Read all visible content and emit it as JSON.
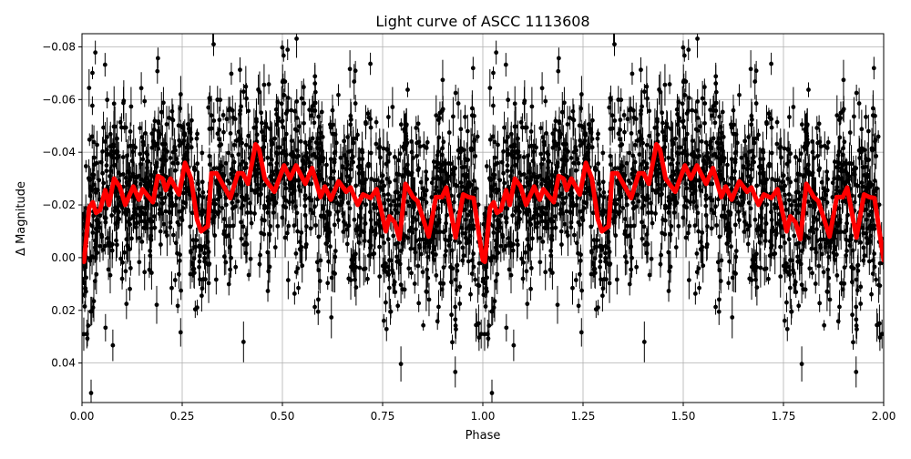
{
  "chart_data": {
    "type": "scatter",
    "title": "Light curve of ASCC 1113608",
    "xlabel": "Phase",
    "ylabel": "Δ Magnitude",
    "xlim": [
      0,
      2
    ],
    "ylim": [
      0.055,
      -0.085
    ],
    "y_inverted": true,
    "grid": true,
    "xticks": [
      "0.00",
      "0.25",
      "0.50",
      "0.75",
      "1.00",
      "1.25",
      "1.50",
      "1.75",
      "2.00"
    ],
    "xtick_values": [
      0,
      0.25,
      0.5,
      0.75,
      1,
      1.25,
      1.5,
      1.75,
      2
    ],
    "yticks": [
      "−0.08",
      "−0.06",
      "−0.04",
      "−0.02",
      "0.00",
      "0.02",
      "0.04"
    ],
    "ytick_values": [
      -0.08,
      -0.06,
      -0.04,
      -0.02,
      0,
      0.02,
      0.04
    ],
    "series": [
      {
        "kind": "errorbar-scatter",
        "color": "#000000",
        "description_visible": "phase-folded photometry with error bars, repeated over two cycles"
      },
      {
        "kind": "line",
        "color": "#ff0000",
        "period_repeat": 1,
        "x": [
          0.005,
          0.018,
          0.027,
          0.035,
          0.045,
          0.058,
          0.067,
          0.08,
          0.094,
          0.108,
          0.128,
          0.142,
          0.151,
          0.177,
          0.189,
          0.201,
          0.209,
          0.221,
          0.242,
          0.257,
          0.272,
          0.287,
          0.297,
          0.314,
          0.323,
          0.336,
          0.37,
          0.389,
          0.401,
          0.414,
          0.433,
          0.442,
          0.456,
          0.48,
          0.504,
          0.519,
          0.534,
          0.557,
          0.574,
          0.595,
          0.606,
          0.621,
          0.64,
          0.659,
          0.67,
          0.688,
          0.701,
          0.72,
          0.735,
          0.758,
          0.767,
          0.78,
          0.792,
          0.807,
          0.826,
          0.837,
          0.865,
          0.883,
          0.898,
          0.909,
          0.932,
          0.951,
          0.964,
          0.977,
          1.0
        ],
        "y": [
          0.0016,
          -0.019,
          -0.021,
          -0.017,
          -0.018,
          -0.0256,
          -0.02,
          -0.03,
          -0.027,
          -0.02,
          -0.027,
          -0.022,
          -0.026,
          -0.021,
          -0.031,
          -0.03,
          -0.0256,
          -0.03,
          -0.024,
          -0.036,
          -0.03,
          -0.0145,
          -0.01,
          -0.012,
          -0.032,
          -0.032,
          -0.0226,
          -0.032,
          -0.032,
          -0.028,
          -0.043,
          -0.041,
          -0.03,
          -0.025,
          -0.035,
          -0.03,
          -0.035,
          -0.028,
          -0.034,
          -0.023,
          -0.027,
          -0.022,
          -0.029,
          -0.025,
          -0.0266,
          -0.02,
          -0.024,
          -0.0226,
          -0.026,
          -0.01,
          -0.0157,
          -0.0134,
          -0.007,
          -0.028,
          -0.023,
          -0.0215,
          -0.008,
          -0.023,
          -0.023,
          -0.0266,
          -0.0076,
          -0.024,
          -0.023,
          -0.0226,
          0.001
        ]
      }
    ]
  }
}
